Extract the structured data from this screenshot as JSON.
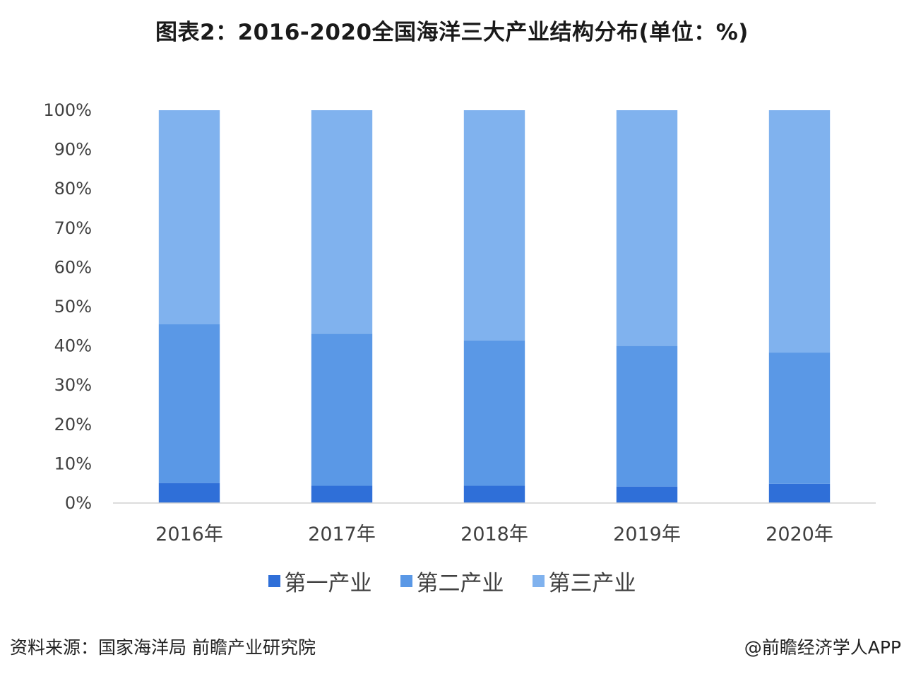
{
  "title": "图表2：2016-2020全国海洋三大产业结构分布(单位：%)",
  "source": "资料来源：国家海洋局 前瞻产业研究院",
  "credit": "@前瞻经济学人APP",
  "chart_data": {
    "type": "bar",
    "stacked": true,
    "categories": [
      "2016年",
      "2017年",
      "2018年",
      "2019年",
      "2020年"
    ],
    "series": [
      {
        "name": "第一产业",
        "color": "#2f6fd8",
        "values": [
          5.1,
          4.4,
          4.4,
          4.2,
          4.9
        ]
      },
      {
        "name": "第二产业",
        "color": "#5a98e6",
        "values": [
          40.4,
          38.7,
          37.0,
          35.8,
          33.4
        ]
      },
      {
        "name": "第三产业",
        "color": "#80b2ee",
        "values": [
          54.5,
          56.9,
          58.6,
          60.0,
          61.7
        ]
      }
    ],
    "yticks": [
      "0%",
      "10%",
      "20%",
      "30%",
      "40%",
      "50%",
      "60%",
      "70%",
      "80%",
      "90%",
      "100%"
    ],
    "ylim": [
      0,
      100
    ],
    "legend_position": "bottom",
    "grid": false
  }
}
